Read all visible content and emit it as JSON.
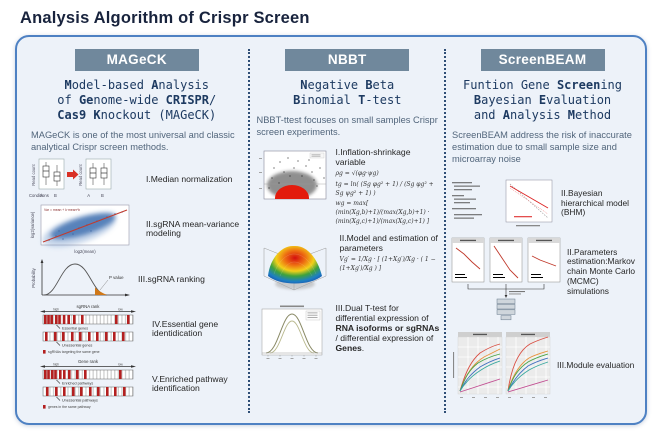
{
  "page": {
    "title": "Analysis Algorithm of Crispr Screen"
  },
  "colors": {
    "border": "#4e81c3",
    "panel_bg": "#edf2f9",
    "header_bg": "#70889c",
    "title_navy": "#18233d",
    "mono_navy": "#1d3a61",
    "body_text": "#51657b",
    "red_accent": "#d93025"
  },
  "mageck": {
    "header": "MAGeCK",
    "title_lines": [
      [
        {
          "t": "M",
          "b": true
        },
        {
          "t": "odel-based ",
          "b": false
        },
        {
          "t": "A",
          "b": true
        },
        {
          "t": "nalysis",
          "b": false
        }
      ],
      [
        {
          "t": "of ",
          "b": false
        },
        {
          "t": "Ge",
          "b": true
        },
        {
          "t": "nome-wide ",
          "b": false
        },
        {
          "t": "CRISPR",
          "b": true
        },
        {
          "t": "/",
          "b": false
        }
      ],
      [
        {
          "t": "Cas9 ",
          "b": true
        },
        {
          "t": "K",
          "b": true
        },
        {
          "t": "nockout (MAGeCK)",
          "b": false
        }
      ]
    ],
    "description": "MAGeCK is one of the most universal and classic analytical Crispr screen methods.",
    "step1_label": "I.Median normalization",
    "step2_label": "II.sgRNA mean-variance modeling",
    "step3_label": "III.sgRNA ranking",
    "step4_label": "IV.Essential gene identidication",
    "step5_label": "V.Enriched pathway identification",
    "fig_boxplot": {
      "ylabel": "Read count",
      "xlabel": "Conditions",
      "groups": "A B"
    },
    "fig_scatter": {
      "ylabel": "log2(variance)",
      "xlabel": "log2(mean)",
      "note": "Var = mean + k·mean^b"
    },
    "fig_bell": {
      "ylabel": "Probability",
      "annotation": "P value"
    },
    "fig_rank1": {
      "title": "sgRNA rank",
      "left": "high",
      "right": "low",
      "row1": "Essential genes",
      "row2": "Unessential genes",
      "legend": "sgRNAs targeting the same gene"
    },
    "fig_rank2": {
      "title": "Gene rank",
      "left": "high",
      "right": "low",
      "row1": "Enriched pathways",
      "row2": "Unessential pathways",
      "legend": "genes in the same pathway"
    }
  },
  "nbbt": {
    "header": "NBBT",
    "title_lines": [
      [
        {
          "t": "N",
          "b": true
        },
        {
          "t": "egative ",
          "b": false
        },
        {
          "t": "B",
          "b": true
        },
        {
          "t": "eta",
          "b": false
        }
      ],
      [
        {
          "t": "B",
          "b": true
        },
        {
          "t": "inomial ",
          "b": false
        },
        {
          "t": "T",
          "b": true
        },
        {
          "t": "-test",
          "b": false
        }
      ]
    ],
    "description": "NBBT-ttest focuses on small samples Crispr screen experiments.",
    "step1_label": "I.Inflation-shrinkage variable",
    "step1_formulas": [
      "ρg = √(φg·ψg)",
      "tg = ln( (Sg φg² + 1) / (Sg φg² + Sg ψg² + 1) )",
      "wg = max[ (min(Xg,b)+1)/(max(Xg,b)+1) · (min(Xg,c)+1)/(max(Xg,c)+1) ]"
    ],
    "step2_label": "II.Model and estimation of parameters",
    "step2_formula": "Vg′ = 1/Xg · [ (1+Xg′)/Xg · ( 1 − (1+Xg′)/Xg ) ]",
    "step3_segments": [
      {
        "t": "III.Dual T-test for differential expression of ",
        "b": false
      },
      {
        "t": "RNA isoforms or sgRNAs",
        "b": true
      },
      {
        "t": " / differential expression of ",
        "b": false
      },
      {
        "t": "Genes",
        "b": true
      },
      {
        "t": ".",
        "b": false
      }
    ]
  },
  "screenbeam": {
    "header": "ScreenBEAM",
    "title_lines": [
      [
        {
          "t": "Funtion Gene ",
          "b": false
        },
        {
          "t": "Screen",
          "b": true
        },
        {
          "t": "ing",
          "b": false
        }
      ],
      [
        {
          "t": "B",
          "b": true
        },
        {
          "t": "ayesian ",
          "b": false
        },
        {
          "t": "E",
          "b": true
        },
        {
          "t": "valuation",
          "b": false
        }
      ],
      [
        {
          "t": "and ",
          "b": false
        },
        {
          "t": "A",
          "b": true
        },
        {
          "t": "nalysis ",
          "b": false
        },
        {
          "t": "M",
          "b": true
        },
        {
          "t": "ethod",
          "b": false
        }
      ]
    ],
    "description": "ScreenBEAM address the risk of inaccurate estimation due to small sample size and microarray noise",
    "step1_label": "II.Bayesian hierarchical model (BHM)",
    "step2_label": "II.Parameters estimation:Markov chain Monte Carlo (MCMC) simulations",
    "step3_label": "III.Module evaluation"
  }
}
